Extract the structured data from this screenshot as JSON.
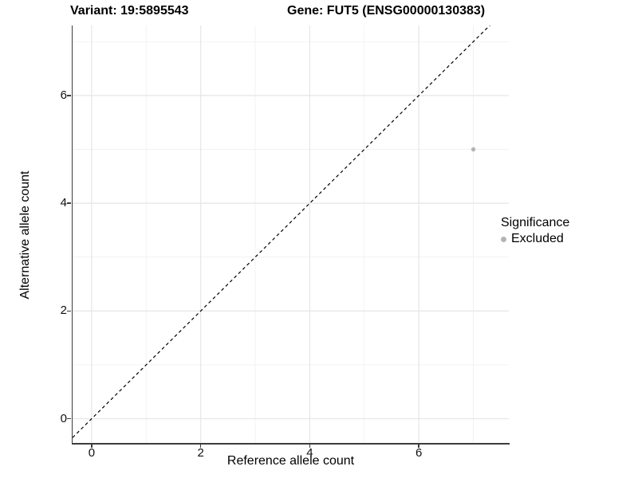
{
  "header": {
    "title_left": "Variant: 19:5895543",
    "title_right": "Gene: FUT5 (ENSG00000130383)"
  },
  "chart_data": {
    "type": "scatter",
    "title": "Variant: 19:5895543 / Gene: FUT5 (ENSG00000130383)",
    "xlabel": "Reference allele count",
    "ylabel": "Alternative allele count",
    "xlim": [
      -0.35,
      7.65
    ],
    "ylim": [
      -0.45,
      7.3
    ],
    "x_major_ticks": [
      0,
      2,
      4,
      6
    ],
    "x_minor_ticks": [
      1,
      3,
      5,
      7
    ],
    "y_major_ticks": [
      0,
      2,
      4,
      6
    ],
    "y_minor_ticks": [
      1,
      3,
      5,
      7
    ],
    "grid": true,
    "series": [
      {
        "name": "Excluded",
        "points": [
          {
            "x": 7,
            "y": 5
          }
        ]
      }
    ],
    "reference_line": {
      "type": "identity-abline",
      "slope": 1,
      "intercept": 0,
      "style": "dashed",
      "color": "#000000",
      "width": 1.2,
      "dash": "4 3.5"
    },
    "legend": {
      "title": "Significance",
      "position": "right",
      "items": [
        {
          "label": "Excluded",
          "color": "#b4b4b4"
        }
      ]
    },
    "style": {
      "point_color": "#b4b4b4",
      "point_radius": 2.7,
      "grid_major_color": "#e6e6e6",
      "grid_minor_color": "#f1f1f1",
      "axis_line_color": "#3c3c3c",
      "background": "#ffffff"
    }
  }
}
